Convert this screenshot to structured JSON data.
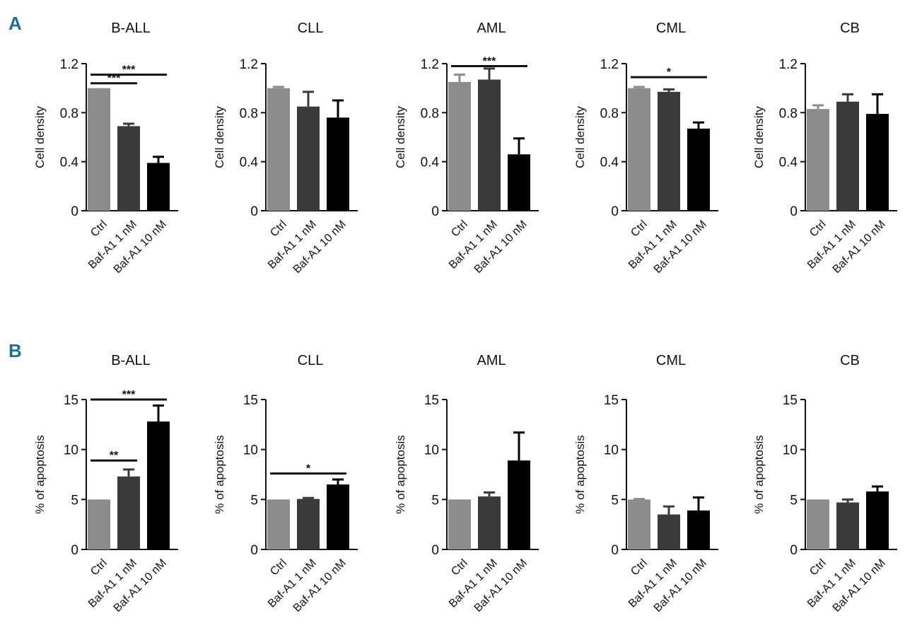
{
  "colors": {
    "ctrl": "#8c8c8c",
    "baf1": "#3a3a3a",
    "baf10": "#000000",
    "axis": "#111111",
    "panel_letter": "#1d6f95"
  },
  "chart_data": [
    {
      "type": "bar",
      "panel": "A",
      "title": "B-ALL",
      "ylabel": "Cell density",
      "ylim": [
        0,
        1.2
      ],
      "yticks": [
        0,
        0.4,
        0.8,
        1.2
      ],
      "ytick_labels": [
        "0",
        "0.4",
        "0.8",
        "1.2"
      ],
      "categories": [
        "Ctrl",
        "Baf-A1 1 nM",
        "Baf-A1 10 nM"
      ],
      "values": [
        1.0,
        0.69,
        0.39
      ],
      "errors": [
        0.0,
        0.02,
        0.05
      ],
      "significance": [
        {
          "from": 0,
          "to": 1,
          "label": "***",
          "y": 1.04
        },
        {
          "from": 0,
          "to": 2,
          "label": "***",
          "y": 1.11
        }
      ]
    },
    {
      "type": "bar",
      "panel": "A",
      "title": "CLL",
      "ylabel": "Cell density",
      "ylim": [
        0,
        1.2
      ],
      "yticks": [
        0,
        0.4,
        0.8,
        1.2
      ],
      "ytick_labels": [
        "0",
        "0.4",
        "0.8",
        "1.2"
      ],
      "categories": [
        "Ctrl",
        "Baf-A1 1 nM",
        "Baf-A1 10 nM"
      ],
      "values": [
        1.0,
        0.85,
        0.76
      ],
      "errors": [
        0.01,
        0.12,
        0.14
      ],
      "significance": []
    },
    {
      "type": "bar",
      "panel": "A",
      "title": "AML",
      "ylabel": "Cell density",
      "ylim": [
        0,
        1.2
      ],
      "yticks": [
        0,
        0.4,
        0.8,
        1.2
      ],
      "ytick_labels": [
        "0",
        "0.4",
        "0.8",
        "1.2"
      ],
      "categories": [
        "Ctrl",
        "Baf-A1 1 nM",
        "Baf-A1 10 nM"
      ],
      "values": [
        1.05,
        1.07,
        0.46
      ],
      "errors": [
        0.06,
        0.09,
        0.13
      ],
      "significance": [
        {
          "from": 0,
          "to": 2,
          "label": "***",
          "y": 1.18
        }
      ]
    },
    {
      "type": "bar",
      "panel": "A",
      "title": "CML",
      "ylabel": "Cell density",
      "ylim": [
        0,
        1.2
      ],
      "yticks": [
        0,
        0.4,
        0.8,
        1.2
      ],
      "ytick_labels": [
        "0",
        "0.4",
        "0.8",
        "1.2"
      ],
      "categories": [
        "Ctrl",
        "Baf-A1 1 nM",
        "Baf-A1 10 nM"
      ],
      "values": [
        1.0,
        0.97,
        0.67
      ],
      "errors": [
        0.01,
        0.02,
        0.05
      ],
      "significance": [
        {
          "from": 0,
          "to": 2,
          "label": "*",
          "y": 1.09
        }
      ]
    },
    {
      "type": "bar",
      "panel": "A",
      "title": "CB",
      "ylabel": "Cell density",
      "ylim": [
        0,
        1.2
      ],
      "yticks": [
        0,
        0.4,
        0.8,
        1.2
      ],
      "ytick_labels": [
        "0",
        "0.4",
        "0.8",
        "1.2"
      ],
      "categories": [
        "Ctrl",
        "Baf-A1 1 nM",
        "Baf-A1 10 nM"
      ],
      "values": [
        0.83,
        0.89,
        0.79
      ],
      "errors": [
        0.03,
        0.06,
        0.16
      ],
      "significance": []
    },
    {
      "type": "bar",
      "panel": "B",
      "title": "B-ALL",
      "ylabel": "% of apoptosis",
      "ylim": [
        0,
        15
      ],
      "yticks": [
        0,
        5,
        10,
        15
      ],
      "ytick_labels": [
        "0",
        "5",
        "10",
        "15"
      ],
      "categories": [
        "Ctrl",
        "Baf-A1 1 nM",
        "Baf-A1 10 nM"
      ],
      "values": [
        5.0,
        7.3,
        12.8
      ],
      "errors": [
        0.0,
        0.7,
        1.6
      ],
      "significance": [
        {
          "from": 0,
          "to": 1,
          "label": "**",
          "y": 8.9
        },
        {
          "from": 0,
          "to": 2,
          "label": "***",
          "y": 15.0
        }
      ]
    },
    {
      "type": "bar",
      "panel": "B",
      "title": "CLL",
      "ylabel": "% of apoptosis",
      "ylim": [
        0,
        15
      ],
      "yticks": [
        0,
        5,
        10,
        15
      ],
      "ytick_labels": [
        "0",
        "5",
        "10",
        "15"
      ],
      "categories": [
        "Ctrl",
        "Baf-A1 1 nM",
        "Baf-A1 10 nM"
      ],
      "values": [
        5.0,
        5.05,
        6.5
      ],
      "errors": [
        0.0,
        0.1,
        0.5
      ],
      "significance": [
        {
          "from": 0,
          "to": 2,
          "label": "*",
          "y": 7.6
        }
      ]
    },
    {
      "type": "bar",
      "panel": "B",
      "title": "AML",
      "ylabel": "% of apoptosis",
      "ylim": [
        0,
        15
      ],
      "yticks": [
        0,
        5,
        10,
        15
      ],
      "ytick_labels": [
        "0",
        "5",
        "10",
        "15"
      ],
      "categories": [
        "Ctrl",
        "Baf-A1 1 nM",
        "Baf-A1 10 nM"
      ],
      "values": [
        5.0,
        5.3,
        8.9
      ],
      "errors": [
        0.0,
        0.4,
        2.8
      ],
      "significance": []
    },
    {
      "type": "bar",
      "panel": "B",
      "title": "CML",
      "ylabel": "% of apoptosis",
      "ylim": [
        0,
        15
      ],
      "yticks": [
        0,
        5,
        10,
        15
      ],
      "ytick_labels": [
        "0",
        "5",
        "10",
        "15"
      ],
      "categories": [
        "Ctrl",
        "Baf-A1 1 nM",
        "Baf-A1 10 nM"
      ],
      "values": [
        5.0,
        3.5,
        3.9
      ],
      "errors": [
        0.05,
        0.8,
        1.3
      ],
      "significance": []
    },
    {
      "type": "bar",
      "panel": "B",
      "title": "CB",
      "ylabel": "% of apoptosis",
      "ylim": [
        0,
        15
      ],
      "yticks": [
        0,
        5,
        10,
        15
      ],
      "ytick_labels": [
        "0",
        "5",
        "10",
        "15"
      ],
      "categories": [
        "Ctrl",
        "Baf-A1 1 nM",
        "Baf-A1 10 nM"
      ],
      "values": [
        5.0,
        4.7,
        5.8
      ],
      "errors": [
        0.0,
        0.3,
        0.5
      ],
      "significance": []
    }
  ]
}
